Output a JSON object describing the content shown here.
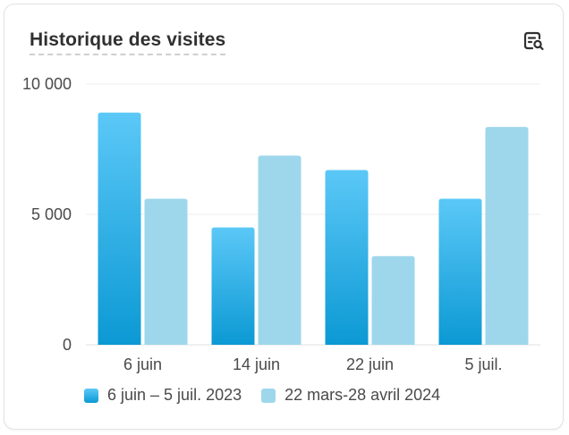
{
  "card": {
    "title": "Historique des visites",
    "action_icon": "search-report-icon"
  },
  "colors": {
    "series_current_top": "#5bc8f7",
    "series_current_bottom": "#0c99d4",
    "series_previous": "#9ed7ec",
    "grid": "#ececec",
    "axis_text": "#4a4a4a"
  },
  "chart_data": {
    "type": "bar",
    "categories": [
      "6 juin",
      "14 juin",
      "22 juin",
      "5 juil."
    ],
    "series": [
      {
        "name": "6 juin – 5 juil. 2023",
        "values": [
          8900,
          4500,
          6700,
          5600
        ]
      },
      {
        "name": "22 mars-28 avril 2024",
        "values": [
          5600,
          7250,
          3400,
          8350
        ]
      }
    ],
    "ylim": [
      0,
      10000
    ],
    "yticks": [
      0,
      5000,
      10000
    ],
    "ytick_labels": [
      "0",
      "5 000",
      "10 000"
    ],
    "grid": true,
    "legend_position": "bottom-left",
    "title": "",
    "xlabel": "",
    "ylabel": ""
  }
}
